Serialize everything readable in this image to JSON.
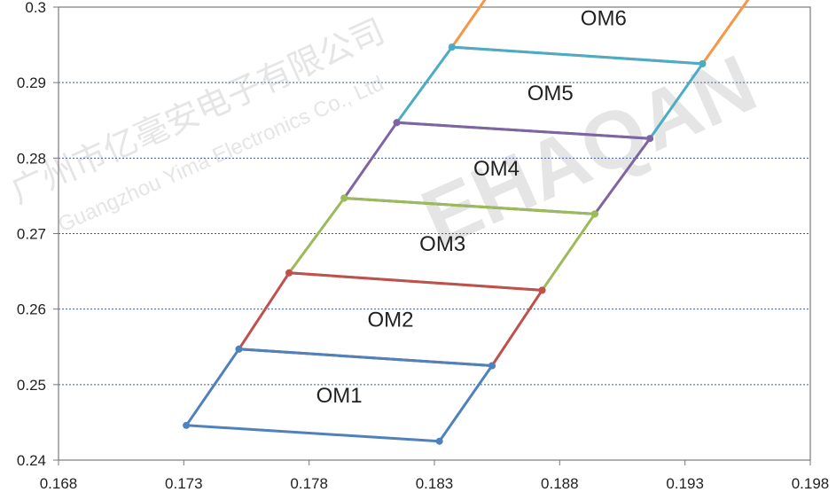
{
  "chart_data": {
    "type": "line",
    "title": "",
    "xlabel": "",
    "ylabel": "",
    "xlim": [
      0.168,
      0.198
    ],
    "ylim": [
      0.24,
      0.3
    ],
    "x_ticks": [
      "0.168",
      "0.173",
      "0.178",
      "0.183",
      "0.188",
      "0.193",
      "0.198"
    ],
    "y_ticks": [
      "0.24",
      "0.25",
      "0.26",
      "0.27",
      "0.28",
      "0.29",
      "0.3"
    ],
    "grid": "horizontal dotted",
    "legend": "none",
    "regions": [
      {
        "label": "OM1",
        "color": "#4f81bd",
        "points": [
          [
            0.1731,
            0.2446
          ],
          [
            0.1832,
            0.2425
          ],
          [
            0.1853,
            0.2525
          ],
          [
            0.1752,
            0.2547
          ],
          [
            0.1731,
            0.2446
          ]
        ]
      },
      {
        "label": "OM2",
        "color": "#c0504d",
        "points": [
          [
            0.1752,
            0.2547
          ],
          [
            0.1853,
            0.2525
          ],
          [
            0.1873,
            0.2625
          ],
          [
            0.1772,
            0.2648
          ],
          [
            0.1752,
            0.2547
          ]
        ]
      },
      {
        "label": "OM3",
        "color": "#9bbb59",
        "points": [
          [
            0.1772,
            0.2648
          ],
          [
            0.1873,
            0.2625
          ],
          [
            0.1894,
            0.2726
          ],
          [
            0.1794,
            0.2747
          ],
          [
            0.1772,
            0.2648
          ]
        ]
      },
      {
        "label": "OM4",
        "color": "#8064a2",
        "points": [
          [
            0.1794,
            0.2747
          ],
          [
            0.1894,
            0.2726
          ],
          [
            0.1916,
            0.2826
          ],
          [
            0.1815,
            0.2847
          ],
          [
            0.1794,
            0.2747
          ]
        ]
      },
      {
        "label": "OM5",
        "color": "#4bacc6",
        "points": [
          [
            0.1815,
            0.2847
          ],
          [
            0.1916,
            0.2826
          ],
          [
            0.1937,
            0.2925
          ],
          [
            0.1837,
            0.2947
          ],
          [
            0.1815,
            0.2847
          ]
        ]
      },
      {
        "label": "OM6",
        "color": "#f79646",
        "points": [
          [
            0.1837,
            0.2947
          ],
          [
            0.1937,
            0.2925
          ],
          [
            0.1958,
            0.3023
          ],
          [
            0.1858,
            0.3047
          ],
          [
            0.1837,
            0.2947
          ]
        ]
      }
    ]
  },
  "watermark": {
    "lines": [
      "广州市亿毫安电子有限公司",
      "Guangzhou Yima Electronics Co., Ltd",
      "EHAQAN"
    ]
  }
}
